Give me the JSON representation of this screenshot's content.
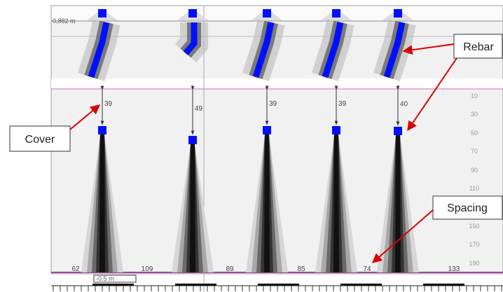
{
  "callouts": {
    "cover": "Cover",
    "rebar": "Rebar",
    "spacing": "Spacing"
  },
  "scale": {
    "top": "0,882 m",
    "bottom": "-0.5 m"
  },
  "cover_values": [
    "39",
    "49",
    "39",
    "39",
    "40"
  ],
  "spacing_values": [
    "62",
    "109",
    "89",
    "85",
    "74",
    "133"
  ],
  "depth_ticks": [
    "10",
    "30",
    "50",
    "70",
    "90",
    "110",
    "150",
    "170",
    "190"
  ]
}
